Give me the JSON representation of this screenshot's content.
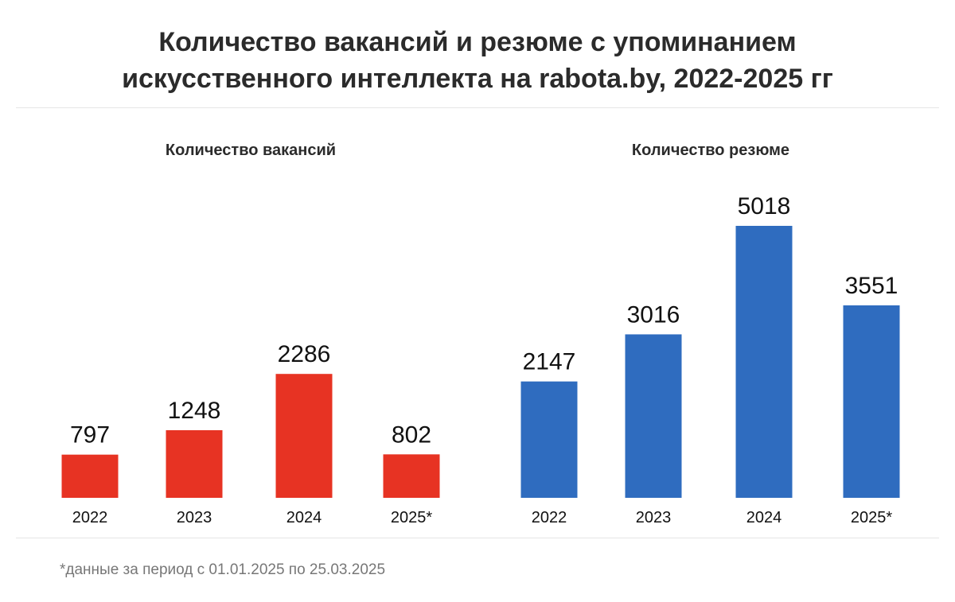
{
  "header": {
    "title_line1": "Количество вакансий и резюме с упоминанием",
    "title_line2": "искусственного интеллекта на rabota.by, 2022-2025 гг"
  },
  "chart_data": [
    {
      "type": "bar",
      "title": "Количество вакансий",
      "categories": [
        "2022",
        "2023",
        "2024",
        "2025*"
      ],
      "values": [
        797,
        1248,
        2286,
        802
      ],
      "color": "#e73323",
      "ylim": [
        0,
        5018
      ],
      "grid": false
    },
    {
      "type": "bar",
      "title": "Количество резюме",
      "categories": [
        "2022",
        "2023",
        "2024",
        "2025*"
      ],
      "values": [
        2147,
        3016,
        5018,
        3551
      ],
      "color": "#2f6cbf",
      "ylim": [
        0,
        5018
      ],
      "grid": false
    }
  ],
  "footnote": "*данные за период с 01.01.2025 по 25.03.2025"
}
